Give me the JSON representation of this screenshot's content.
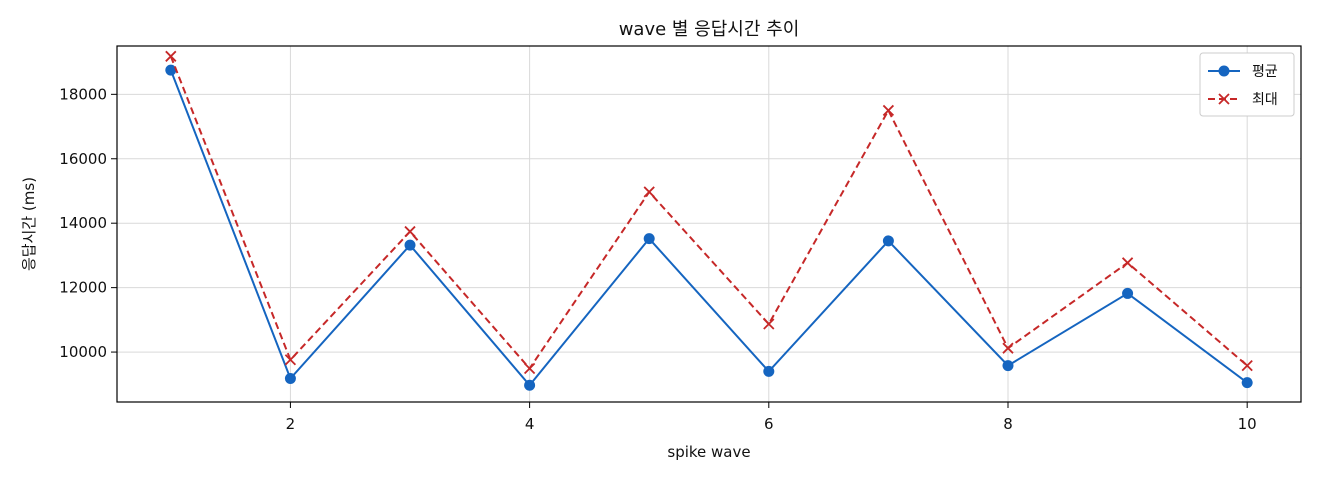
{
  "chart_data": {
    "type": "line",
    "title": "wave 별 응답시간 추이",
    "xlabel": "spike wave",
    "ylabel": "응답시간 (ms)",
    "x": [
      1,
      2,
      3,
      4,
      5,
      6,
      7,
      8,
      9,
      10
    ],
    "xlim": [
      0.55,
      10.45
    ],
    "ylim": [
      8450,
      19500
    ],
    "xticks": [
      2,
      4,
      6,
      8,
      10
    ],
    "yticks": [
      10000,
      12000,
      14000,
      16000,
      18000
    ],
    "grid": true,
    "legend_position": "top-right",
    "series": [
      {
        "name": "평균",
        "color": "#1565c0",
        "line_style": "solid",
        "marker": "circle",
        "values": [
          18750,
          9180,
          13320,
          8970,
          13520,
          9400,
          13450,
          9580,
          11820,
          9050
        ]
      },
      {
        "name": "최대",
        "color": "#c62828",
        "line_style": "dashed",
        "marker": "x",
        "values": [
          19180,
          9760,
          13740,
          9490,
          14970,
          10870,
          17500,
          10120,
          12770,
          9580
        ]
      }
    ]
  }
}
